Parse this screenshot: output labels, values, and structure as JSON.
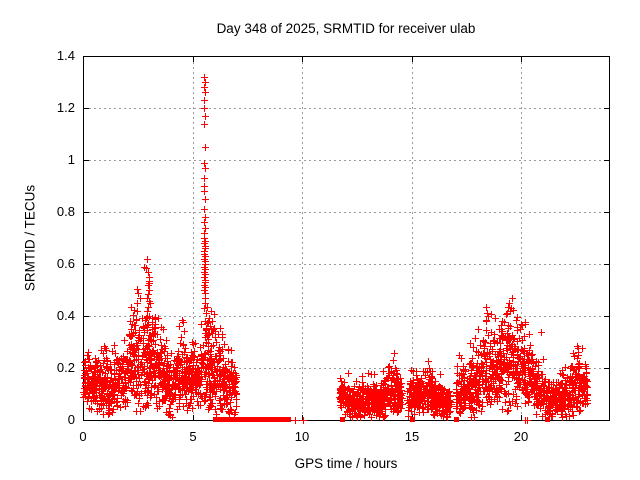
{
  "chart_data": {
    "type": "scatter",
    "title": "Day 348 of 2025, SRMTID for receiver ulab",
    "xlabel": "GPS time / hours",
    "ylabel": "SRMTID / TECUs",
    "xlim": [
      0,
      24
    ],
    "ylim": [
      0,
      1.4
    ],
    "xticks": {
      "values": [
        0,
        5,
        10,
        15,
        20
      ],
      "labels": [
        "0",
        "5",
        "10",
        "15",
        "20"
      ]
    },
    "yticks": {
      "values": [
        0,
        0.2,
        0.4,
        0.6,
        0.8,
        1,
        1.2,
        1.4
      ],
      "labels": [
        "0",
        "0.2",
        "0.4",
        "0.6",
        "0.8",
        "1",
        "1.2",
        "1.4"
      ]
    },
    "grid": true,
    "legend": "none",
    "marker": "plus",
    "marker_size_px": 7,
    "marker_color": "#ff0000",
    "grid_color": "#9c9c9c",
    "border_color": "#000000",
    "background": "#ffffff",
    "seed": 7,
    "segments": [
      [
        0.0,
        7.0,
        170
      ],
      [
        11.7,
        14.55,
        160
      ],
      [
        14.8,
        16.78,
        160
      ],
      [
        17.0,
        23.0,
        160
      ]
    ],
    "band_profile": [
      [
        0.0,
        0.14,
        0.07
      ],
      [
        0.5,
        0.15,
        0.07
      ],
      [
        0.9,
        0.13,
        0.08
      ],
      [
        1.2,
        0.1,
        0.09
      ],
      [
        1.6,
        0.14,
        0.08
      ],
      [
        2.0,
        0.17,
        0.09
      ],
      [
        2.3,
        0.22,
        0.13
      ],
      [
        2.6,
        0.24,
        0.14
      ],
      [
        2.9,
        0.27,
        0.16
      ],
      [
        3.1,
        0.26,
        0.15
      ],
      [
        3.4,
        0.21,
        0.12
      ],
      [
        3.7,
        0.16,
        0.1
      ],
      [
        3.95,
        0.12,
        0.09
      ],
      [
        4.2,
        0.15,
        0.08
      ],
      [
        4.5,
        0.17,
        0.1
      ],
      [
        4.8,
        0.16,
        0.09
      ],
      [
        5.1,
        0.15,
        0.08
      ],
      [
        5.35,
        0.18,
        0.1
      ],
      [
        5.6,
        0.21,
        0.12
      ],
      [
        5.9,
        0.19,
        0.12
      ],
      [
        6.2,
        0.15,
        0.1
      ],
      [
        6.5,
        0.13,
        0.09
      ],
      [
        6.8,
        0.12,
        0.08
      ],
      [
        7.0,
        0.1,
        0.07
      ],
      [
        11.7,
        0.11,
        0.05
      ],
      [
        12.0,
        0.08,
        0.05
      ],
      [
        12.4,
        0.06,
        0.04
      ],
      [
        12.8,
        0.07,
        0.05
      ],
      [
        13.1,
        0.08,
        0.05
      ],
      [
        13.5,
        0.07,
        0.05
      ],
      [
        13.9,
        0.1,
        0.06
      ],
      [
        14.15,
        0.12,
        0.07
      ],
      [
        14.55,
        0.09,
        0.05
      ],
      [
        14.8,
        0.08,
        0.05
      ],
      [
        15.1,
        0.09,
        0.05
      ],
      [
        15.4,
        0.1,
        0.06
      ],
      [
        15.8,
        0.11,
        0.06
      ],
      [
        16.2,
        0.08,
        0.05
      ],
      [
        16.6,
        0.06,
        0.04
      ],
      [
        16.78,
        0.06,
        0.04
      ],
      [
        17.0,
        0.09,
        0.06
      ],
      [
        17.4,
        0.11,
        0.07
      ],
      [
        17.8,
        0.13,
        0.09
      ],
      [
        18.1,
        0.15,
        0.1
      ],
      [
        18.45,
        0.19,
        0.12
      ],
      [
        18.8,
        0.17,
        0.11
      ],
      [
        19.1,
        0.19,
        0.12
      ],
      [
        19.45,
        0.21,
        0.13
      ],
      [
        19.75,
        0.19,
        0.11
      ],
      [
        20.0,
        0.21,
        0.1
      ],
      [
        20.3,
        0.18,
        0.1
      ],
      [
        20.6,
        0.14,
        0.09
      ],
      [
        20.9,
        0.11,
        0.08
      ],
      [
        21.2,
        0.07,
        0.05
      ],
      [
        21.6,
        0.08,
        0.05
      ],
      [
        22.0,
        0.09,
        0.06
      ],
      [
        22.35,
        0.12,
        0.07
      ],
      [
        22.65,
        0.14,
        0.08
      ],
      [
        22.9,
        0.13,
        0.07
      ],
      [
        23.0,
        0.12,
        0.06
      ]
    ],
    "spike_points": [
      [
        5.52,
        1.32
      ],
      [
        5.55,
        1.3
      ],
      [
        5.53,
        1.28
      ],
      [
        5.56,
        1.26
      ],
      [
        5.54,
        1.23
      ],
      [
        5.52,
        1.2
      ],
      [
        5.55,
        1.17
      ],
      [
        5.53,
        1.14
      ],
      [
        5.56,
        1.05
      ],
      [
        5.52,
        0.99
      ],
      [
        5.55,
        0.97
      ],
      [
        5.54,
        0.93
      ],
      [
        5.51,
        0.9
      ],
      [
        5.53,
        0.88
      ],
      [
        5.56,
        0.85
      ],
      [
        5.52,
        0.81
      ],
      [
        5.55,
        0.78
      ],
      [
        5.53,
        0.76
      ],
      [
        5.57,
        0.74
      ],
      [
        5.54,
        0.72
      ],
      [
        5.52,
        0.7
      ],
      [
        5.56,
        0.69
      ],
      [
        5.53,
        0.68
      ],
      [
        5.55,
        0.67
      ],
      [
        5.58,
        0.66
      ],
      [
        5.54,
        0.65
      ],
      [
        5.52,
        0.64
      ],
      [
        5.56,
        0.63
      ],
      [
        5.53,
        0.62
      ],
      [
        5.57,
        0.61
      ],
      [
        5.55,
        0.6
      ],
      [
        5.53,
        0.59
      ],
      [
        5.58,
        0.58
      ],
      [
        5.54,
        0.57
      ],
      [
        5.56,
        0.56
      ],
      [
        5.52,
        0.55
      ],
      [
        5.55,
        0.54
      ],
      [
        5.57,
        0.53
      ],
      [
        5.54,
        0.52
      ],
      [
        5.56,
        0.51
      ],
      [
        5.53,
        0.5
      ],
      [
        5.58,
        0.49
      ],
      [
        5.55,
        0.47
      ],
      [
        5.57,
        0.45
      ],
      [
        5.54,
        0.43
      ],
      [
        5.6,
        0.41
      ],
      [
        5.56,
        0.38
      ],
      [
        5.62,
        0.35
      ],
      [
        5.58,
        0.32
      ],
      [
        5.63,
        0.3
      ],
      [
        2.95,
        0.57
      ],
      [
        3.0,
        0.55
      ],
      [
        2.97,
        0.52
      ],
      [
        3.03,
        0.5
      ],
      [
        2.92,
        0.47
      ],
      [
        3.06,
        0.45
      ],
      [
        2.45,
        0.45
      ],
      [
        2.48,
        0.42
      ],
      [
        2.42,
        0.39
      ],
      [
        5.85,
        0.42
      ],
      [
        5.9,
        0.38
      ],
      [
        5.95,
        0.35
      ],
      [
        6.02,
        0.32
      ],
      [
        6.08,
        0.3
      ],
      [
        6.15,
        0.33
      ],
      [
        6.22,
        0.28
      ],
      [
        19.45,
        0.45
      ],
      [
        19.5,
        0.42
      ],
      [
        18.45,
        0.41
      ],
      [
        18.4,
        0.38
      ],
      [
        20.0,
        0.37
      ],
      [
        19.95,
        0.35
      ],
      [
        19.05,
        0.35
      ],
      [
        18.75,
        0.33
      ],
      [
        20.35,
        0.33
      ],
      [
        20.9,
        0.34
      ],
      [
        14.15,
        0.23
      ],
      [
        15.85,
        0.19
      ],
      [
        22.6,
        0.26
      ],
      [
        22.55,
        0.24
      ],
      [
        17.15,
        0.25
      ]
    ],
    "zero_runs": [
      [
        6.03,
        6.48
      ],
      [
        6.59,
        6.68
      ],
      [
        6.75,
        6.82
      ],
      [
        6.94,
        7.77
      ],
      [
        7.85,
        8.27
      ],
      [
        8.36,
        8.54
      ],
      [
        8.6,
        8.72
      ],
      [
        8.81,
        8.94
      ],
      [
        9.03,
        9.12
      ],
      [
        9.3,
        9.37
      ]
    ],
    "zero_squares": [
      11.8,
      15.02,
      17.03,
      21.18
    ],
    "zero_plus_points": [
      9.68,
      10.05,
      20.18,
      20.24
    ]
  }
}
